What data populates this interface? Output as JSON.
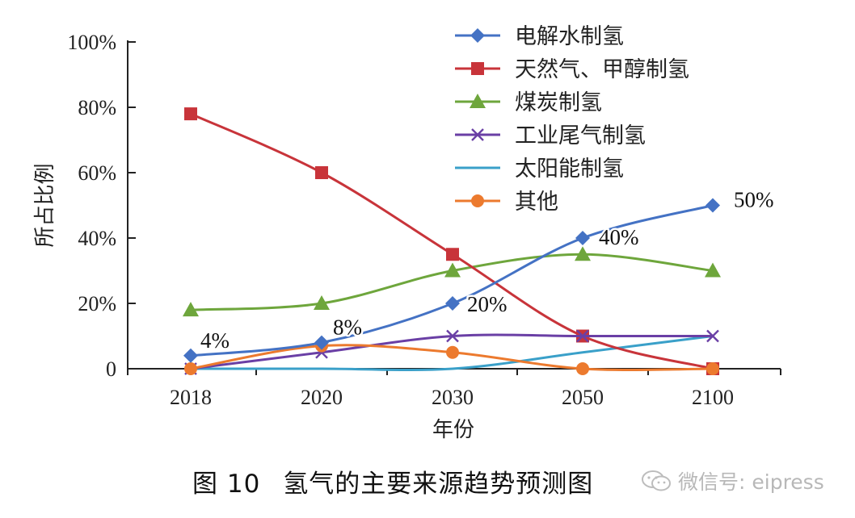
{
  "chart_data": {
    "type": "line",
    "categories": [
      "2018",
      "2020",
      "2030",
      "2050",
      "2100"
    ],
    "ylim": [
      0,
      100
    ],
    "yticks": [
      "0",
      "20%",
      "40%",
      "60%",
      "80%",
      "100%"
    ],
    "ylabel": "所占比例",
    "xlabel": "年份",
    "series": [
      {
        "name": "电解水制氢",
        "values": [
          4,
          8,
          20,
          40,
          50
        ],
        "color": "#4472c4",
        "marker": "diamond"
      },
      {
        "name": "天然气、甲醇制氢",
        "values": [
          78,
          60,
          35,
          10,
          0
        ],
        "color": "#c8343a",
        "marker": "square"
      },
      {
        "name": "煤炭制氢",
        "values": [
          18,
          20,
          30,
          35,
          30
        ],
        "color": "#6ea63c",
        "marker": "triangle"
      },
      {
        "name": "工业尾气制氢",
        "values": [
          0,
          5,
          10,
          10,
          10
        ],
        "color": "#6a3fa5",
        "marker": "x"
      },
      {
        "name": "太阳能制氢",
        "values": [
          0,
          0,
          0,
          5,
          10
        ],
        "color": "#3aa0c9",
        "marker": "none"
      },
      {
        "name": "其他",
        "values": [
          0,
          7,
          5,
          0,
          0
        ],
        "color": "#ec7a2e",
        "marker": "circle"
      }
    ],
    "annotations": [
      {
        "text": "4%",
        "series": 0,
        "index": 0
      },
      {
        "text": "8%",
        "series": 0,
        "index": 1
      },
      {
        "text": "20%",
        "series": 0,
        "index": 2
      },
      {
        "text": "40%",
        "series": 0,
        "index": 3
      },
      {
        "text": "50%",
        "series": 0,
        "index": 4
      }
    ]
  },
  "caption": {
    "number": "图 10",
    "title": "氢气的主要来源趋势预测图"
  },
  "watermark": {
    "text": "微信号: eipress"
  }
}
